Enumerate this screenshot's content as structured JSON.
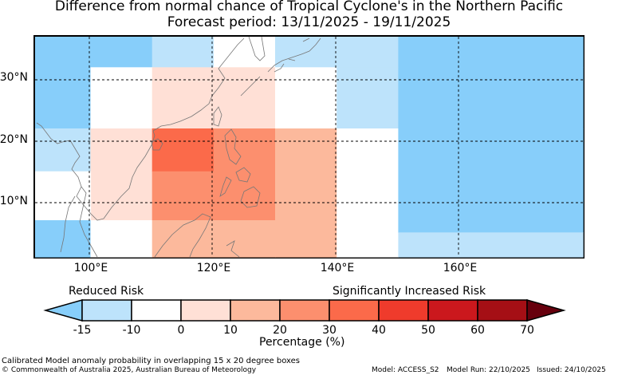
{
  "title_line1": "Difference from normal chance of Tropical Cyclone's in the Northern Pacific",
  "title_line2": "Forecast period: 13/11/2025 - 19/11/2025",
  "lat_labels": [
    "30°N",
    "20°N",
    "10°N"
  ],
  "lon_labels": [
    "100°E",
    "120°E",
    "140°E",
    "160°E"
  ],
  "colorbar": {
    "left_label": "Reduced Risk",
    "right_label": "Significantly Increased Risk",
    "ticks": [
      "-15",
      "-10",
      "0",
      "10",
      "20",
      "30",
      "40",
      "50",
      "60",
      "70"
    ],
    "title": "Percentage (%)",
    "colors": [
      "#87cefa",
      "#bde3fb",
      "#ffffff",
      "#ffe0d6",
      "#fcb99c",
      "#fc8f6e",
      "#fb6a4a",
      "#ef3b2c",
      "#cb181d",
      "#a50f15",
      "#67000d"
    ]
  },
  "footer": {
    "line1": "Calibrated Model anomaly probability in overlapping 15 x 20 degree boxes",
    "line2": "© Commonwealth of Australia 2025, Australian Bureau of Meteorology",
    "model": "Model: ACCESS_S2",
    "model_run": "Model Run: 22/10/2025",
    "issued": "Issued: 24/10/2025"
  },
  "chart_data": {
    "type": "heatmap",
    "title": "Difference from normal chance of Tropical Cyclone's in the Northern Pacific",
    "subtitle": "Forecast period: 13/11/2025 - 19/11/2025",
    "units": "Percentage (%)",
    "lon_range": [
      91,
      180
    ],
    "lat_range": [
      1,
      37
    ],
    "cells": [
      {
        "lon": [
          91,
          100
        ],
        "lat": [
          32,
          37
        ],
        "class": "-15"
      },
      {
        "lon": [
          100,
          110
        ],
        "lat": [
          32,
          37
        ],
        "class": "-15"
      },
      {
        "lon": [
          110,
          120
        ],
        "lat": [
          32,
          37
        ],
        "class": "-10"
      },
      {
        "lon": [
          120,
          130
        ],
        "lat": [
          32,
          37
        ],
        "class": "0"
      },
      {
        "lon": [
          130,
          140
        ],
        "lat": [
          32,
          37
        ],
        "class": "-10"
      },
      {
        "lon": [
          140,
          150
        ],
        "lat": [
          32,
          37
        ],
        "class": "-10"
      },
      {
        "lon": [
          150,
          180
        ],
        "lat": [
          32,
          37
        ],
        "class": "-15"
      },
      {
        "lon": [
          91,
          100
        ],
        "lat": [
          22,
          32
        ],
        "class": "-15"
      },
      {
        "lon": [
          100,
          110
        ],
        "lat": [
          22,
          32
        ],
        "class": "0"
      },
      {
        "lon": [
          110,
          130
        ],
        "lat": [
          22,
          32
        ],
        "class": "0-10"
      },
      {
        "lon": [
          130,
          140
        ],
        "lat": [
          22,
          32
        ],
        "class": "0"
      },
      {
        "lon": [
          140,
          150
        ],
        "lat": [
          22,
          32
        ],
        "class": "-10"
      },
      {
        "lon": [
          150,
          180
        ],
        "lat": [
          22,
          32
        ],
        "class": "-15"
      },
      {
        "lon": [
          91,
          100
        ],
        "lat": [
          15,
          22
        ],
        "class": "-10"
      },
      {
        "lon": [
          100,
          110
        ],
        "lat": [
          7,
          22
        ],
        "class": "0-10"
      },
      {
        "lon": [
          110,
          120
        ],
        "lat": [
          15,
          22
        ],
        "class": "30-40"
      },
      {
        "lon": [
          120,
          130
        ],
        "lat": [
          7,
          22
        ],
        "class": "20-30"
      },
      {
        "lon": [
          130,
          140
        ],
        "lat": [
          1,
          22
        ],
        "class": "10-20"
      },
      {
        "lon": [
          110,
          120
        ],
        "lat": [
          7,
          15
        ],
        "class": "20-30"
      },
      {
        "lon": [
          140,
          150
        ],
        "lat": [
          1,
          22
        ],
        "class": "0"
      },
      {
        "lon": [
          150,
          180
        ],
        "lat": [
          5,
          22
        ],
        "class": "-15"
      },
      {
        "lon": [
          91,
          100
        ],
        "lat": [
          7,
          15
        ],
        "class": "0"
      },
      {
        "lon": [
          91,
          100
        ],
        "lat": [
          1,
          7
        ],
        "class": "-15"
      },
      {
        "lon": [
          100,
          110
        ],
        "lat": [
          1,
          7
        ],
        "class": "0"
      },
      {
        "lon": [
          110,
          130
        ],
        "lat": [
          1,
          7
        ],
        "class": "10-20"
      },
      {
        "lon": [
          150,
          180
        ],
        "lat": [
          1,
          5
        ],
        "class": "-10"
      }
    ]
  }
}
